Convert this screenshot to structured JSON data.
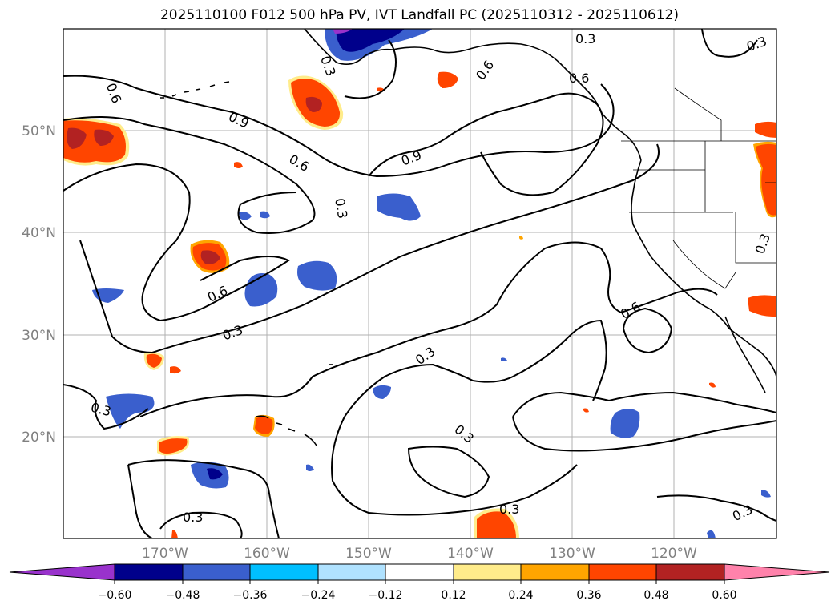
{
  "title": "2025110100 F012 500 hPa PV, IVT Landfall PC (2025110312 - 2025110612)",
  "map": {
    "lon_range": [
      -180,
      -110
    ],
    "lat_range": [
      10,
      60
    ],
    "lon_ticks": [
      "170°W",
      "160°W",
      "150°W",
      "140°W",
      "130°W",
      "120°W"
    ],
    "lat_ticks": [
      "50°N",
      "40°N",
      "30°N",
      "20°N"
    ],
    "gridlines": true,
    "contour_labels": [
      "0.6",
      "0.9",
      "0.6",
      "0.3",
      "0.9",
      "0.6",
      "0.3",
      "0.6",
      "0.3",
      "0.6",
      "0.6",
      "0.3",
      "0.3",
      "0.3",
      "0.3",
      "0.3",
      "0.3",
      "0.3",
      "0.3",
      "0.3"
    ]
  },
  "colorbar": {
    "ticks": [
      "−0.60",
      "−0.48",
      "−0.36",
      "−0.24",
      "−0.12",
      "0.12",
      "0.24",
      "0.36",
      "0.48",
      "0.60"
    ],
    "colors": [
      "#9932cc",
      "#00008b",
      "#3a5fcd",
      "#00bfff",
      "#b0e2ff",
      "#ffffff",
      "#ffec8b",
      "#ffa500",
      "#ff4500",
      "#b22222",
      "#ff82ab"
    ],
    "extend": "both"
  }
}
